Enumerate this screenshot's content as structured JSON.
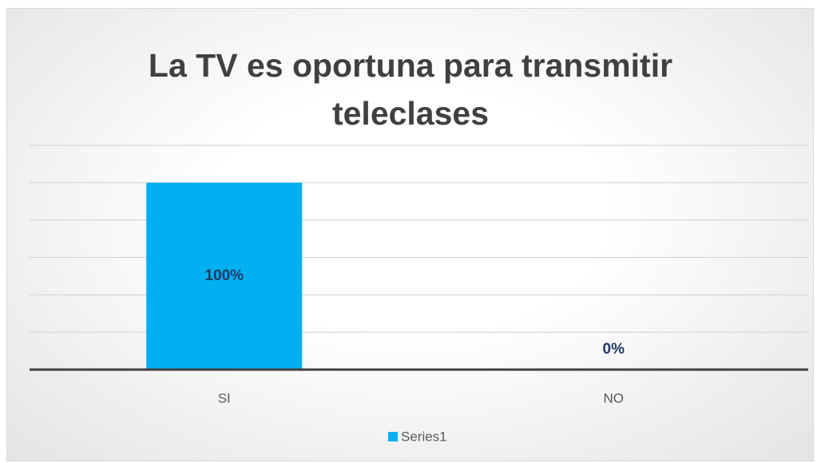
{
  "chart_data": {
    "type": "bar",
    "title": "La TV es oportuna para transmitir teleclases",
    "categories": [
      "SI",
      "NO"
    ],
    "series": [
      {
        "name": "Series1",
        "color": "#00b0f0",
        "values": [
          100,
          0
        ],
        "value_labels": [
          "100%",
          "0%"
        ]
      }
    ],
    "ylim": [
      0,
      120
    ],
    "yticks": [
      0,
      20,
      40,
      60,
      80,
      100,
      120
    ],
    "grid": true,
    "legend": "bottom"
  }
}
